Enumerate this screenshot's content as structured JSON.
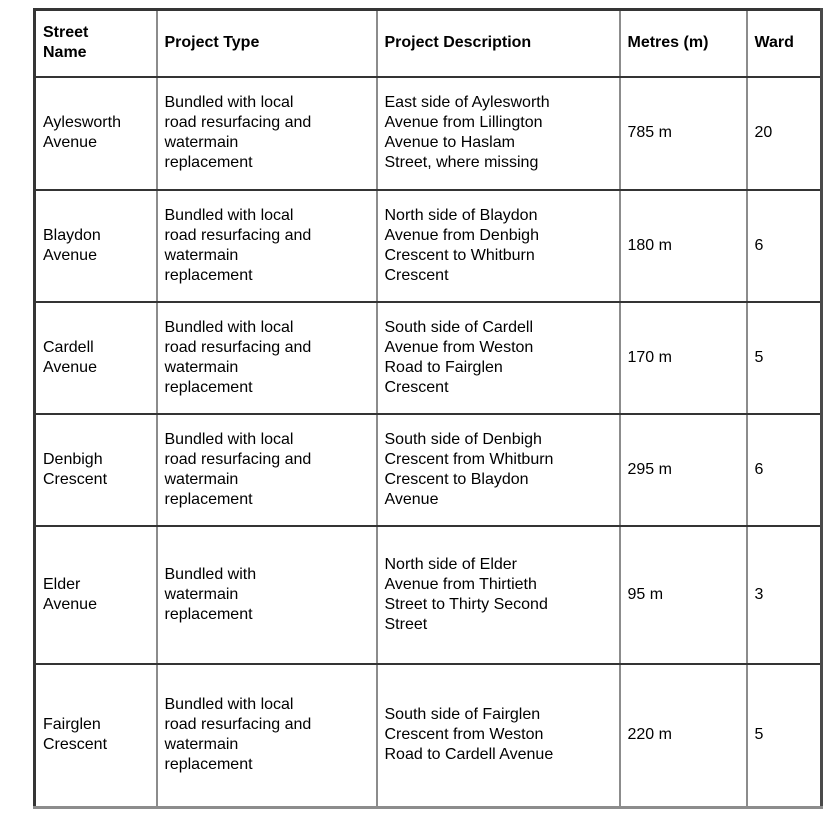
{
  "table": {
    "columns": [
      {
        "label": "Street\nName"
      },
      {
        "label": "Project Type"
      },
      {
        "label": "Project Description"
      },
      {
        "label": "Metres (m)"
      },
      {
        "label": "Ward"
      }
    ],
    "rows": [
      {
        "street_name": "Aylesworth\nAvenue",
        "project_type": "Bundled with local\nroad resurfacing and\nwatermain\nreplacement",
        "project_description": "East side of Aylesworth\nAvenue from Lillington\nAvenue to Haslam\nStreet, where missing",
        "metres": "785 m",
        "ward": "20"
      },
      {
        "street_name": "Blaydon\nAvenue",
        "project_type": "Bundled with local\nroad resurfacing and\nwatermain\nreplacement",
        "project_description": "North side of Blaydon\nAvenue from Denbigh\nCrescent to Whitburn\nCrescent",
        "metres": "180 m",
        "ward": "6"
      },
      {
        "street_name": "Cardell\nAvenue",
        "project_type": "Bundled with local\nroad resurfacing and\nwatermain\nreplacement",
        "project_description": "South side of Cardell\nAvenue from Weston\nRoad to Fairglen\nCrescent",
        "metres": "170 m",
        "ward": "5"
      },
      {
        "street_name": "Denbigh\nCrescent",
        "project_type": "Bundled with local\nroad resurfacing and\nwatermain\nreplacement",
        "project_description": "South side of Denbigh\nCrescent from Whitburn\nCrescent to Blaydon\nAvenue",
        "metres": "295 m",
        "ward": "6"
      },
      {
        "street_name": "Elder\nAvenue",
        "project_type": "Bundled with\nwatermain\nreplacement",
        "project_description": "North side of Elder\nAvenue from Thirtieth\nStreet to Thirty Second\nStreet",
        "metres": "95 m",
        "ward": "3"
      },
      {
        "street_name": "Fairglen\nCrescent",
        "project_type": "Bundled with local\nroad resurfacing and\nwatermain\nreplacement",
        "project_description": "South side of Fairglen\nCrescent from Weston\nRoad to Cardell Avenue",
        "metres": "220 m",
        "ward": "5"
      }
    ]
  },
  "colors": {
    "background": "#ffffff",
    "text": "#000000",
    "border_horizontal": "#343434",
    "border_vertical": "#8c8c8c"
  }
}
